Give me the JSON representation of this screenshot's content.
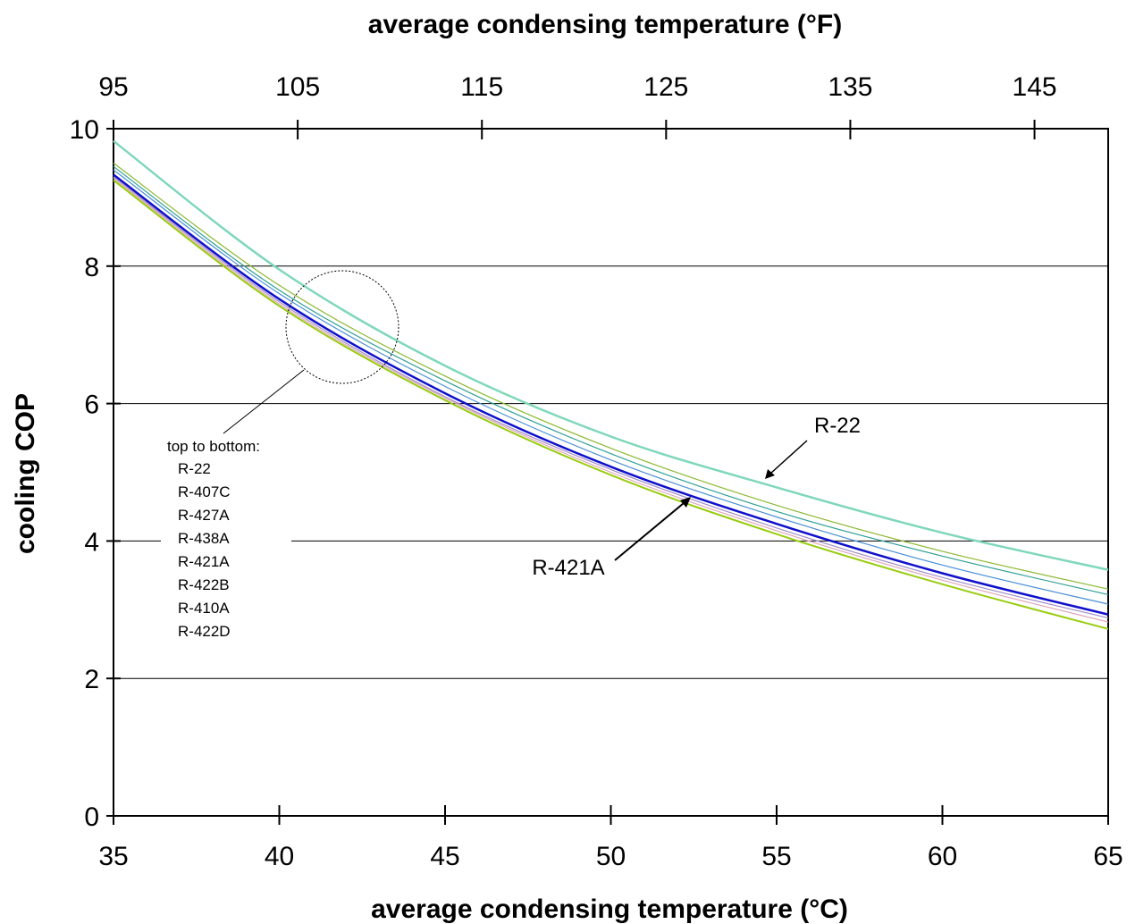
{
  "chart_data": {
    "type": "line",
    "title": "",
    "xlabel": "average condensing temperature (°C)",
    "x2label": "average condensing temperature (°F)",
    "ylabel": "cooling COP",
    "xlim": [
      35,
      65
    ],
    "ylim": [
      0,
      10
    ],
    "x2lim": [
      95,
      149
    ],
    "x_ticks": [
      "35",
      "40",
      "45",
      "50",
      "55",
      "60",
      "65"
    ],
    "x2_ticks": [
      "95",
      "105",
      "115",
      "125",
      "135",
      "145"
    ],
    "y_ticks": [
      "0",
      "2",
      "4",
      "6",
      "8",
      "10"
    ],
    "grid": "horizontal",
    "x": [
      35,
      40,
      45,
      50,
      55,
      60,
      65
    ],
    "series": [
      {
        "name": "R-22",
        "color": "#7fd8b8",
        "values": [
          9.82,
          7.95,
          6.55,
          5.52,
          4.78,
          4.12,
          3.58
        ]
      },
      {
        "name": "R-407C",
        "color": "#8cb832",
        "values": [
          9.5,
          7.72,
          6.4,
          5.35,
          4.52,
          3.85,
          3.3
        ]
      },
      {
        "name": "R-427A",
        "color": "#2e9f95",
        "values": [
          9.45,
          7.65,
          6.33,
          5.27,
          4.43,
          3.78,
          3.22
        ]
      },
      {
        "name": "R-438A",
        "color": "#4a8fd6",
        "values": [
          9.4,
          7.6,
          6.25,
          5.18,
          4.35,
          3.65,
          3.08
        ]
      },
      {
        "name": "R-421A",
        "color": "#1010cc",
        "values": [
          9.33,
          7.52,
          6.15,
          5.08,
          4.25,
          3.53,
          2.93
        ]
      },
      {
        "name": "R-422B",
        "color": "#a08cc8",
        "values": [
          9.3,
          7.48,
          6.1,
          5.04,
          4.19,
          3.47,
          2.88
        ]
      },
      {
        "name": "R-410A",
        "color": "#e0a8b8",
        "values": [
          9.28,
          7.45,
          6.08,
          5.0,
          4.15,
          3.43,
          2.82
        ]
      },
      {
        "name": "R-422D",
        "color": "#99cc11",
        "values": [
          9.25,
          7.42,
          6.05,
          4.96,
          4.1,
          3.37,
          2.72
        ]
      }
    ],
    "annotations": {
      "legend_title": "top to bottom:",
      "legend_items": [
        "R-22",
        "R-407C",
        "R-427A",
        "R-438A",
        "R-421A",
        "R-422B",
        "R-410A",
        "R-422D"
      ],
      "label_r22": "R-22",
      "label_r421a": "R-421A"
    }
  }
}
